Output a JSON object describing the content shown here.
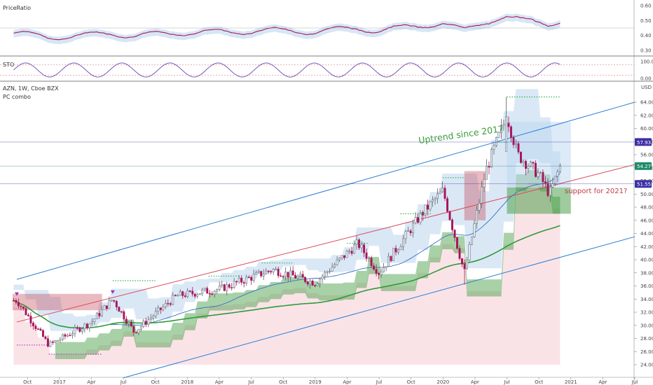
{
  "colors": {
    "candle_up": "#e8eef5",
    "candle_down": "#a6155a",
    "channel": "#2a7fd4",
    "midline": "#d94a5a",
    "ma_blue": "#3a6fc4",
    "ma_green": "#2e9a3a",
    "cloud_blue": "#bcd6ef",
    "cloud_pink": "#f5c7cf",
    "cloud_green": "#3e9a3e",
    "cloud_red": "#c0394a",
    "uptrend_text": "#3c9a3c",
    "support_text": "#c23a48",
    "dots_green": "#2fb34a",
    "dots_magenta": "#c23ac9"
  },
  "panels": {
    "ratio": {
      "title": "PriceRatio",
      "ticks": [
        "0.60",
        "0.50",
        "0.40",
        "0.30"
      ]
    },
    "stoch": {
      "title": "STO",
      "ticks": [
        "100.00",
        "0.00"
      ]
    },
    "main": {
      "title": "AZN, 1W, Cboe BZX",
      "subtitle": "PC combo",
      "currency": "USD",
      "ticks": [
        "64.00",
        "62.00",
        "60.00",
        "58.00",
        "56.00",
        "54.00",
        "52.00",
        "50.00",
        "48.00",
        "46.00",
        "44.00",
        "42.00",
        "40.00",
        "38.00",
        "36.00",
        "34.00",
        "32.00",
        "30.00",
        "28.00",
        "26.00",
        "24.00"
      ],
      "tags": [
        {
          "label": "57.93",
          "value": 57.93,
          "color": "#3b2fa6"
        },
        {
          "label": "54.27",
          "value": 54.27,
          "color": "#1e8a6a"
        },
        {
          "label": "51.55",
          "value": 51.55,
          "color": "#3b2fa6"
        }
      ],
      "annotations": {
        "uptrend": "Uptrend since 2017",
        "support": "support for 2021?"
      }
    }
  },
  "x_axis": {
    "labels": [
      "Oct",
      "2017",
      "Apr",
      "Jul",
      "Oct",
      "2018",
      "Apr",
      "Jul",
      "Oct",
      "2019",
      "Apr",
      "Jul",
      "Oct",
      "2020",
      "Apr",
      "Jul",
      "Oct",
      "2021",
      "Apr",
      "Jul"
    ]
  },
  "chart_data": {
    "type": "candlestick",
    "symbol": "AZN",
    "interval": "1W",
    "exchange": "Cboe BZX",
    "y_range": [
      23,
      66
    ],
    "x_range": [
      "2016-09",
      "2021-07"
    ],
    "price_path_approx": [
      {
        "date": "2016-09",
        "close": 33.8
      },
      {
        "date": "2016-12",
        "close": 27.0
      },
      {
        "date": "2017-04",
        "close": 30.5
      },
      {
        "date": "2017-06",
        "close": 34.0
      },
      {
        "date": "2017-08",
        "close": 29.0
      },
      {
        "date": "2017-12",
        "close": 34.5
      },
      {
        "date": "2018-04",
        "close": 35.5
      },
      {
        "date": "2018-09",
        "close": 38.5
      },
      {
        "date": "2019-01",
        "close": 36.5
      },
      {
        "date": "2019-05",
        "close": 42.5
      },
      {
        "date": "2019-07",
        "close": 38.0
      },
      {
        "date": "2019-11",
        "close": 47.0
      },
      {
        "date": "2020-01",
        "close": 50.5
      },
      {
        "date": "2020-03",
        "close": 38.0
      },
      {
        "date": "2020-05",
        "close": 53.5
      },
      {
        "date": "2020-07",
        "close": 62.0
      },
      {
        "date": "2020-08",
        "close": 56.0
      },
      {
        "date": "2020-10",
        "close": 53.0
      },
      {
        "date": "2020-11",
        "close": 50.0
      },
      {
        "date": "2020-12",
        "close": 54.27
      }
    ],
    "channel_lines": [
      {
        "name": "upper",
        "from": {
          "date": "2016-09",
          "value": 37.0
        },
        "to": {
          "date": "2021-07",
          "value": 64.0
        }
      },
      {
        "name": "middle",
        "from": {
          "date": "2016-09",
          "value": 30.5
        },
        "to": {
          "date": "2021-07",
          "value": 54.5
        }
      },
      {
        "name": "lower",
        "from": {
          "date": "2017-07",
          "value": 22.0
        },
        "to": {
          "date": "2021-07",
          "value": 43.5
        }
      }
    ]
  }
}
